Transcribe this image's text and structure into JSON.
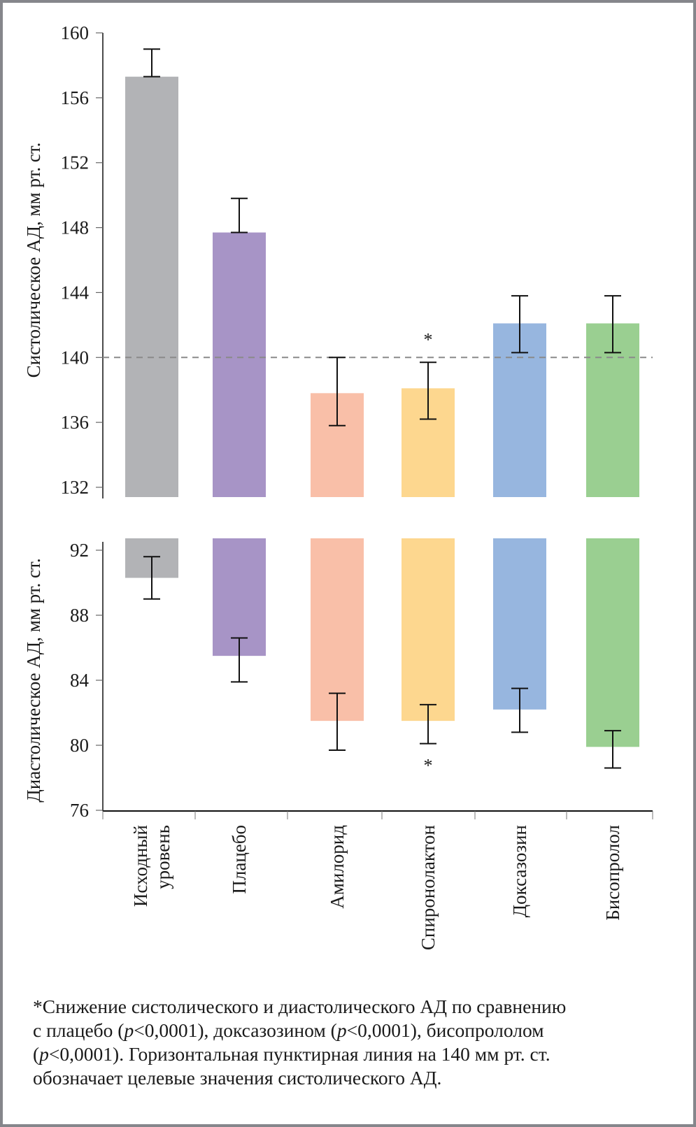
{
  "chart_data": [
    {
      "type": "bar",
      "panel": "top",
      "title": "",
      "xlabel": "",
      "ylabel": "Систолическое АД, мм рт. ст.",
      "ylim": [
        131.4,
        160
      ],
      "yticks": [
        132,
        136,
        140,
        144,
        148,
        152,
        156,
        160
      ],
      "grid": false,
      "reference_line": {
        "value": 140,
        "style": "dashed",
        "meaning": "target systolic BP"
      },
      "categories": [
        "Исходный уровень",
        "Плацебо",
        "Амилорид",
        "Спиронолактон",
        "Доксазозин",
        "Бисопролол"
      ],
      "values": [
        157.3,
        147.7,
        137.8,
        138.1,
        142.1,
        142.1
      ],
      "error_upper": [
        159.0,
        149.8,
        140.0,
        139.7,
        143.8,
        143.8
      ],
      "error_lower": [
        null,
        null,
        135.8,
        136.2,
        140.3,
        140.3
      ],
      "annotations": [
        {
          "category": "Спиронолактон",
          "text": "*",
          "position": "above"
        }
      ]
    },
    {
      "type": "bar",
      "panel": "bottom",
      "title": "",
      "xlabel": "",
      "ylabel": "Диастолическое АД, мм рт. ст.",
      "ylim": [
        76,
        92.7
      ],
      "yticks": [
        76,
        80,
        84,
        88,
        92
      ],
      "grid": false,
      "bars_hang_from_top": true,
      "categories": [
        "Исходный уровень",
        "Плацебо",
        "Амилорид",
        "Спиронолактон",
        "Доксазозин",
        "Бисопролол"
      ],
      "values": [
        90.3,
        85.5,
        81.5,
        81.5,
        82.2,
        79.9
      ],
      "error_upper": [
        91.6,
        86.6,
        83.2,
        82.5,
        83.5,
        80.9
      ],
      "error_lower": [
        89.0,
        83.9,
        79.7,
        80.1,
        80.8,
        78.6
      ],
      "annotations": [
        {
          "category": "Спиронолактон",
          "text": "*",
          "position": "below"
        }
      ]
    }
  ],
  "category_labels": [
    [
      "Исходный",
      "уровень"
    ],
    [
      "Плацебо"
    ],
    [
      "Амилорид"
    ],
    [
      "Спиронолактон"
    ],
    [
      "Доксазозин"
    ],
    [
      "Бисопролол"
    ]
  ],
  "bar_colors": [
    "#b2b3b6",
    "#a794c6",
    "#f9bfa8",
    "#fdd78f",
    "#97b6df",
    "#9acf91"
  ],
  "footnote": {
    "line1": "*Снижение систолического и диастолического АД по сравнению",
    "line2_a": "с плацебо (",
    "p": "p",
    "lt1": "<0,0001), доксазозином (",
    "lt2": "<0,0001), бисопрололом",
    "line3_a": "(",
    "line3_b": "<0,0001). Горизонтальная пунктирная линия на 140 мм рт. ст.",
    "line4": "обозначает целевые значения систолического АД."
  }
}
